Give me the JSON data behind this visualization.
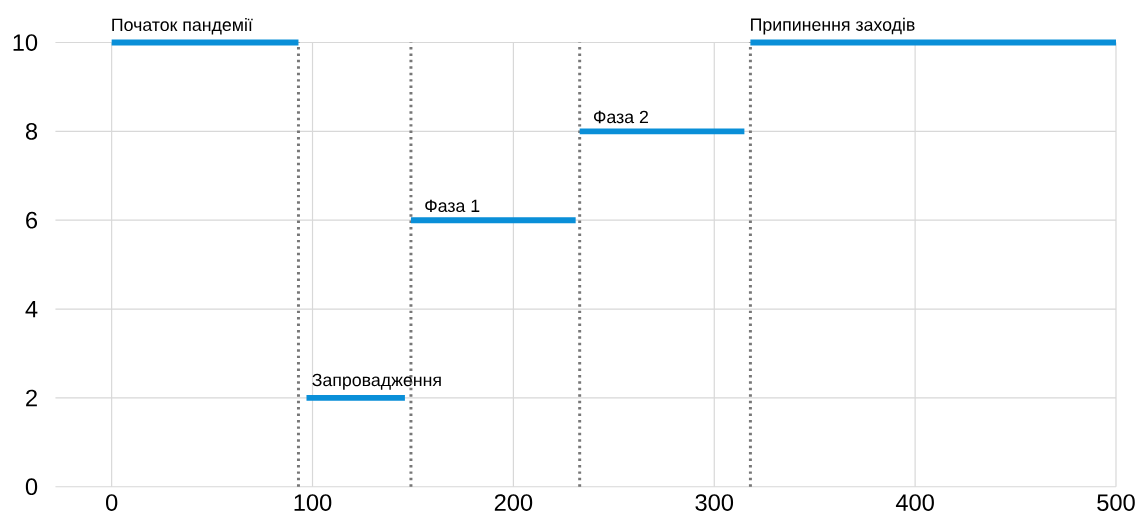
{
  "chart_data": {
    "type": "line",
    "x": [
      0,
      93,
      94,
      97,
      146,
      147,
      149,
      231,
      232,
      233,
      315,
      316,
      318,
      500
    ],
    "series": [
      {
        "color": "#0a8fd8",
        "values": [
          10,
          10,
          null,
          2,
          2,
          null,
          6,
          6,
          null,
          8,
          8,
          null,
          10,
          10
        ]
      }
    ],
    "xlim": [
      -28,
      500
    ],
    "ylim": [
      0,
      10
    ],
    "xticks": [
      0,
      100,
      200,
      300,
      400,
      500
    ],
    "yticks": [
      0,
      2,
      4,
      6,
      8,
      10
    ],
    "grid": true,
    "line_style": "solid",
    "marker": "none",
    "ref_lines": [
      {
        "axis": "x",
        "value": 93,
        "line_style": "dotted",
        "color": "#777777"
      },
      {
        "axis": "x",
        "value": 149,
        "line_style": "dotted",
        "color": "#777777"
      },
      {
        "axis": "x",
        "value": 233,
        "line_style": "dotted",
        "color": "#777777"
      },
      {
        "axis": "x",
        "value": 318,
        "line_style": "dotted",
        "color": "#777777"
      }
    ],
    "annotations": [
      {
        "text": "Початок пандемії",
        "x": 0,
        "y": 10
      },
      {
        "text": "Запровадження",
        "x": 100,
        "y": 2
      },
      {
        "text": "Фаза 1",
        "x": 156,
        "y": 6
      },
      {
        "text": "Фаза 2",
        "x": 240,
        "y": 8
      },
      {
        "text": "Припинення заходів",
        "x": 318,
        "y": 10
      }
    ]
  }
}
